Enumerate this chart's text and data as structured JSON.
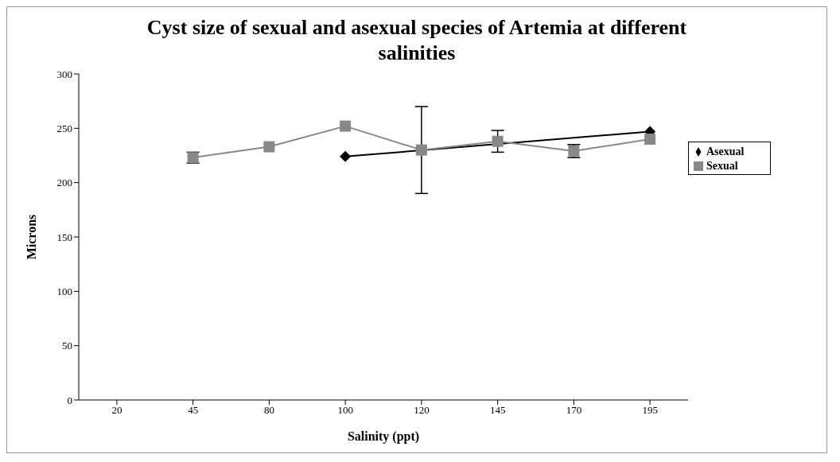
{
  "chart_data": {
    "type": "line",
    "title": "Cyst size of sexual and asexual species of Artemia at different salinities",
    "xlabel": "Salinity (ppt)",
    "ylabel": "Microns",
    "categories": [
      "20",
      "45",
      "80",
      "100",
      "120",
      "145",
      "170",
      "195"
    ],
    "series": [
      {
        "name": "Asexual",
        "color": "#000000",
        "marker": "diamond",
        "x": [
          "100",
          "195"
        ],
        "values": [
          224,
          247
        ]
      },
      {
        "name": "Sexual",
        "color": "#888888",
        "marker": "square",
        "values": [
          null,
          223,
          233,
          252,
          230,
          238,
          229,
          240
        ],
        "errors": [
          null,
          5,
          null,
          null,
          40,
          10,
          6,
          null
        ]
      }
    ],
    "ylim": [
      0,
      300
    ],
    "yticks": [
      0,
      50,
      100,
      150,
      200,
      250,
      300
    ],
    "grid": false,
    "legend": "top right"
  }
}
